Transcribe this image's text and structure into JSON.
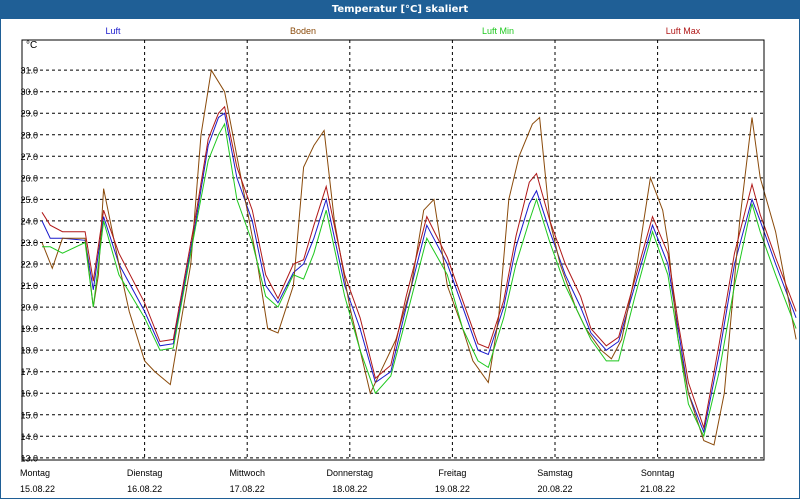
{
  "window": {
    "title": "Temperatur [°C] skaliert"
  },
  "chart_data": {
    "type": "line",
    "title": "Temperatur [°C] skaliert",
    "ylabel": "°C",
    "ylim": [
      12.9,
      32.4
    ],
    "y_ticks": [
      "13.0",
      "14.0",
      "15.0",
      "16.0",
      "17.0",
      "18.0",
      "19.0",
      "20.0",
      "21.0",
      "22.0",
      "23.0",
      "24.0",
      "25.0",
      "26.0",
      "27.0",
      "28.0",
      "29.0",
      "30.0",
      "31.0"
    ],
    "x_range_days": [
      0,
      7
    ],
    "x_ticks": [
      {
        "day": "Montag",
        "date": "15.08.22"
      },
      {
        "day": "Dienstag",
        "date": "16.08.22"
      },
      {
        "day": "Mittwoch",
        "date": "17.08.22"
      },
      {
        "day": "Donnerstag",
        "date": "18.08.22"
      },
      {
        "day": "Freitag",
        "date": "19.08.22"
      },
      {
        "day": "Samstag",
        "date": "20.08.22"
      },
      {
        "day": "Sonntag",
        "date": "21.08.22"
      }
    ],
    "series": [
      {
        "name": "Luft",
        "color": "#1a1acc",
        "points": [
          [
            0,
            24.0
          ],
          [
            0.08,
            23.2
          ],
          [
            0.2,
            23.2
          ],
          [
            0.42,
            23.1
          ],
          [
            0.5,
            20.8
          ],
          [
            0.6,
            24.2
          ],
          [
            0.75,
            22.0
          ],
          [
            1.0,
            19.8
          ],
          [
            1.15,
            18.2
          ],
          [
            1.28,
            18.3
          ],
          [
            1.5,
            24.0
          ],
          [
            1.62,
            27.5
          ],
          [
            1.72,
            28.8
          ],
          [
            1.78,
            29.0
          ],
          [
            1.9,
            26.0
          ],
          [
            2.05,
            24.0
          ],
          [
            2.18,
            21.0
          ],
          [
            2.3,
            20.2
          ],
          [
            2.45,
            21.6
          ],
          [
            2.55,
            22.0
          ],
          [
            2.65,
            23.2
          ],
          [
            2.77,
            25.0
          ],
          [
            2.95,
            21.0
          ],
          [
            3.1,
            19.0
          ],
          [
            3.25,
            16.5
          ],
          [
            3.4,
            17.0
          ],
          [
            3.55,
            20.0
          ],
          [
            3.75,
            23.8
          ],
          [
            3.95,
            22.0
          ],
          [
            4.1,
            20.0
          ],
          [
            4.25,
            18.0
          ],
          [
            4.35,
            17.8
          ],
          [
            4.5,
            20.0
          ],
          [
            4.62,
            22.8
          ],
          [
            4.75,
            24.8
          ],
          [
            4.82,
            25.4
          ],
          [
            4.95,
            23.5
          ],
          [
            5.1,
            21.5
          ],
          [
            5.25,
            20.0
          ],
          [
            5.35,
            18.8
          ],
          [
            5.5,
            18.0
          ],
          [
            5.62,
            18.4
          ],
          [
            5.78,
            21.0
          ],
          [
            5.95,
            23.8
          ],
          [
            6.1,
            22.0
          ],
          [
            6.2,
            19.0
          ],
          [
            6.3,
            16.0
          ],
          [
            6.45,
            14.2
          ],
          [
            6.6,
            17.8
          ],
          [
            6.75,
            22.0
          ],
          [
            6.92,
            25.0
          ],
          [
            7.0,
            24.0
          ],
          [
            7.15,
            22.0
          ],
          [
            7.35,
            19.5
          ]
        ]
      },
      {
        "name": "Boden",
        "color": "#8a4a0a",
        "points": [
          [
            0,
            23.0
          ],
          [
            0.1,
            21.8
          ],
          [
            0.2,
            23.2
          ],
          [
            0.42,
            23.2
          ],
          [
            0.5,
            20.0
          ],
          [
            0.55,
            21.5
          ],
          [
            0.6,
            25.5
          ],
          [
            0.75,
            22.0
          ],
          [
            0.85,
            19.8
          ],
          [
            1.0,
            17.5
          ],
          [
            1.1,
            17.0
          ],
          [
            1.25,
            16.4
          ],
          [
            1.45,
            22.0
          ],
          [
            1.55,
            28.0
          ],
          [
            1.65,
            31.0
          ],
          [
            1.78,
            30.0
          ],
          [
            1.9,
            27.0
          ],
          [
            2.0,
            24.5
          ],
          [
            2.1,
            22.0
          ],
          [
            2.2,
            19.0
          ],
          [
            2.3,
            18.8
          ],
          [
            2.45,
            21.0
          ],
          [
            2.55,
            26.5
          ],
          [
            2.65,
            27.5
          ],
          [
            2.75,
            28.2
          ],
          [
            2.85,
            24.0
          ],
          [
            3.0,
            20.0
          ],
          [
            3.1,
            18.0
          ],
          [
            3.2,
            16.0
          ],
          [
            3.3,
            17.0
          ],
          [
            3.45,
            18.5
          ],
          [
            3.6,
            21.0
          ],
          [
            3.72,
            24.5
          ],
          [
            3.82,
            25.0
          ],
          [
            3.95,
            21.0
          ],
          [
            4.1,
            19.0
          ],
          [
            4.2,
            17.5
          ],
          [
            4.35,
            16.5
          ],
          [
            4.45,
            19.5
          ],
          [
            4.55,
            25.0
          ],
          [
            4.65,
            27.0
          ],
          [
            4.78,
            28.5
          ],
          [
            4.85,
            28.8
          ],
          [
            4.95,
            24.0
          ],
          [
            5.05,
            22.0
          ],
          [
            5.2,
            20.0
          ],
          [
            5.3,
            19.0
          ],
          [
            5.45,
            18.0
          ],
          [
            5.55,
            17.6
          ],
          [
            5.65,
            18.5
          ],
          [
            5.8,
            22.0
          ],
          [
            5.93,
            26.0
          ],
          [
            6.05,
            24.5
          ],
          [
            6.1,
            23.0
          ],
          [
            6.2,
            18.5
          ],
          [
            6.3,
            16.0
          ],
          [
            6.45,
            13.8
          ],
          [
            6.55,
            13.6
          ],
          [
            6.65,
            16.0
          ],
          [
            6.8,
            24.0
          ],
          [
            6.92,
            28.8
          ],
          [
            7.0,
            26.0
          ],
          [
            7.15,
            23.5
          ],
          [
            7.25,
            21.0
          ],
          [
            7.35,
            18.5
          ]
        ]
      },
      {
        "name": "Luft Min",
        "color": "#1ec81e",
        "points": [
          [
            0,
            22.8
          ],
          [
            0.08,
            22.8
          ],
          [
            0.2,
            22.5
          ],
          [
            0.42,
            23.0
          ],
          [
            0.5,
            20.0
          ],
          [
            0.6,
            24.0
          ],
          [
            0.75,
            21.5
          ],
          [
            1.0,
            19.5
          ],
          [
            1.15,
            18.0
          ],
          [
            1.28,
            18.1
          ],
          [
            1.5,
            23.8
          ],
          [
            1.62,
            26.8
          ],
          [
            1.72,
            28.0
          ],
          [
            1.78,
            28.5
          ],
          [
            1.9,
            25.0
          ],
          [
            2.05,
            23.0
          ],
          [
            2.18,
            20.5
          ],
          [
            2.3,
            20.0
          ],
          [
            2.45,
            21.5
          ],
          [
            2.55,
            21.3
          ],
          [
            2.65,
            22.5
          ],
          [
            2.77,
            24.5
          ],
          [
            2.95,
            20.5
          ],
          [
            3.1,
            18.0
          ],
          [
            3.25,
            16.0
          ],
          [
            3.4,
            16.8
          ],
          [
            3.55,
            19.5
          ],
          [
            3.75,
            23.2
          ],
          [
            3.95,
            21.5
          ],
          [
            4.1,
            19.0
          ],
          [
            4.25,
            17.5
          ],
          [
            4.35,
            17.2
          ],
          [
            4.5,
            19.5
          ],
          [
            4.62,
            22.0
          ],
          [
            4.75,
            24.0
          ],
          [
            4.82,
            25.0
          ],
          [
            4.95,
            23.0
          ],
          [
            5.1,
            21.0
          ],
          [
            5.25,
            19.5
          ],
          [
            5.35,
            18.5
          ],
          [
            5.5,
            17.5
          ],
          [
            5.62,
            17.5
          ],
          [
            5.78,
            20.5
          ],
          [
            5.95,
            23.5
          ],
          [
            6.1,
            21.5
          ],
          [
            6.2,
            18.5
          ],
          [
            6.3,
            15.5
          ],
          [
            6.45,
            14.0
          ],
          [
            6.6,
            17.0
          ],
          [
            6.75,
            21.0
          ],
          [
            6.92,
            24.8
          ],
          [
            7.0,
            23.5
          ],
          [
            7.15,
            21.5
          ],
          [
            7.35,
            19.0
          ]
        ]
      },
      {
        "name": "Luft Max",
        "color": "#b01818",
        "points": [
          [
            0,
            24.4
          ],
          [
            0.08,
            23.8
          ],
          [
            0.2,
            23.5
          ],
          [
            0.42,
            23.5
          ],
          [
            0.5,
            21.2
          ],
          [
            0.6,
            24.5
          ],
          [
            0.75,
            22.5
          ],
          [
            1.0,
            20.2
          ],
          [
            1.15,
            18.4
          ],
          [
            1.28,
            18.5
          ],
          [
            1.5,
            24.3
          ],
          [
            1.62,
            27.8
          ],
          [
            1.72,
            29.0
          ],
          [
            1.78,
            29.3
          ],
          [
            1.9,
            26.5
          ],
          [
            2.05,
            24.5
          ],
          [
            2.18,
            21.5
          ],
          [
            2.3,
            20.4
          ],
          [
            2.45,
            22.0
          ],
          [
            2.55,
            22.2
          ],
          [
            2.65,
            23.8
          ],
          [
            2.77,
            25.6
          ],
          [
            2.95,
            21.5
          ],
          [
            3.1,
            19.5
          ],
          [
            3.25,
            16.7
          ],
          [
            3.4,
            17.3
          ],
          [
            3.55,
            20.5
          ],
          [
            3.75,
            24.2
          ],
          [
            3.95,
            22.3
          ],
          [
            4.1,
            20.3
          ],
          [
            4.25,
            18.3
          ],
          [
            4.35,
            18.1
          ],
          [
            4.5,
            20.3
          ],
          [
            4.62,
            23.3
          ],
          [
            4.75,
            25.8
          ],
          [
            4.82,
            26.2
          ],
          [
            4.95,
            24.0
          ],
          [
            5.1,
            22.0
          ],
          [
            5.25,
            20.5
          ],
          [
            5.35,
            19.0
          ],
          [
            5.5,
            18.2
          ],
          [
            5.62,
            18.6
          ],
          [
            5.78,
            21.3
          ],
          [
            5.95,
            24.2
          ],
          [
            6.1,
            22.5
          ],
          [
            6.2,
            19.3
          ],
          [
            6.3,
            16.5
          ],
          [
            6.45,
            14.4
          ],
          [
            6.6,
            18.3
          ],
          [
            6.75,
            22.5
          ],
          [
            6.92,
            25.7
          ],
          [
            7.0,
            24.3
          ],
          [
            7.15,
            22.3
          ],
          [
            7.35,
            19.8
          ]
        ]
      }
    ]
  }
}
